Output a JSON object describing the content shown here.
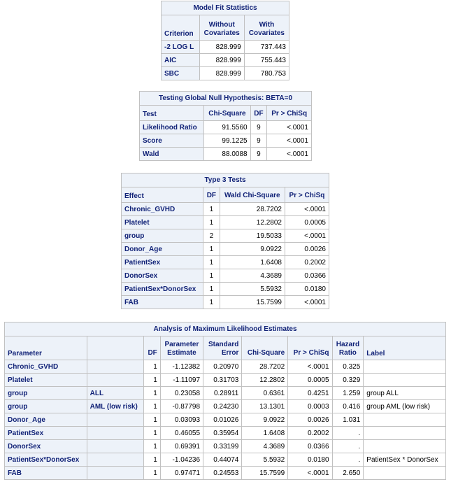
{
  "model_fit": {
    "title": "Model Fit Statistics",
    "headers": [
      "Criterion",
      "Without\nCovariates",
      "With\nCovariates"
    ],
    "rows": [
      [
        "-2 LOG L",
        "828.999",
        "737.443"
      ],
      [
        "AIC",
        "828.999",
        "755.443"
      ],
      [
        "SBC",
        "828.999",
        "780.753"
      ]
    ]
  },
  "global_null": {
    "title": "Testing Global Null Hypothesis: BETA=0",
    "headers": [
      "Test",
      "Chi-Square",
      "DF",
      "Pr > ChiSq"
    ],
    "rows": [
      [
        "Likelihood Ratio",
        "91.5560",
        "9",
        "<.0001"
      ],
      [
        "Score",
        "99.1225",
        "9",
        "<.0001"
      ],
      [
        "Wald",
        "88.0088",
        "9",
        "<.0001"
      ]
    ]
  },
  "type3": {
    "title": "Type 3 Tests",
    "headers": [
      "Effect",
      "DF",
      "Wald Chi-Square",
      "Pr > ChiSq"
    ],
    "rows": [
      [
        "Chronic_GVHD",
        "1",
        "28.7202",
        "<.0001"
      ],
      [
        "Platelet",
        "1",
        "12.2802",
        "0.0005"
      ],
      [
        "group",
        "2",
        "19.5033",
        "<.0001"
      ],
      [
        "Donor_Age",
        "1",
        "9.0922",
        "0.0026"
      ],
      [
        "PatientSex",
        "1",
        "1.6408",
        "0.2002"
      ],
      [
        "DonorSex",
        "1",
        "4.3689",
        "0.0366"
      ],
      [
        "PatientSex*DonorSex",
        "1",
        "5.5932",
        "0.0180"
      ],
      [
        "FAB",
        "1",
        "15.7599",
        "<.0001"
      ]
    ]
  },
  "mle": {
    "title": "Analysis of Maximum Likelihood Estimates",
    "headers": [
      "Parameter",
      "",
      "DF",
      "Parameter\nEstimate",
      "Standard\nError",
      "Chi-Square",
      "Pr > ChiSq",
      "Hazard\nRatio",
      "Label"
    ],
    "rows": [
      [
        "Chronic_GVHD",
        "",
        "1",
        "-1.12382",
        "0.20970",
        "28.7202",
        "<.0001",
        "0.325",
        ""
      ],
      [
        "Platelet",
        "",
        "1",
        "-1.11097",
        "0.31703",
        "12.2802",
        "0.0005",
        "0.329",
        ""
      ],
      [
        "group",
        "ALL",
        "1",
        "0.23058",
        "0.28911",
        "0.6361",
        "0.4251",
        "1.259",
        "group ALL"
      ],
      [
        "group",
        "AML (low risk)",
        "1",
        "-0.87798",
        "0.24230",
        "13.1301",
        "0.0003",
        "0.416",
        "group AML (low risk)"
      ],
      [
        "Donor_Age",
        "",
        "1",
        "0.03093",
        "0.01026",
        "9.0922",
        "0.0026",
        "1.031",
        ""
      ],
      [
        "PatientSex",
        "",
        "1",
        "0.46055",
        "0.35954",
        "1.6408",
        "0.2002",
        ".",
        ""
      ],
      [
        "DonorSex",
        "",
        "1",
        "0.69391",
        "0.33199",
        "4.3689",
        "0.0366",
        ".",
        ""
      ],
      [
        "PatientSex*DonorSex",
        "",
        "1",
        "-1.04236",
        "0.44074",
        "5.5932",
        "0.0180",
        ".",
        "PatientSex * DonorSex"
      ],
      [
        "FAB",
        "",
        "1",
        "0.97471",
        "0.24553",
        "15.7599",
        "<.0001",
        "2.650",
        ""
      ]
    ]
  },
  "colors": {
    "header_bg": "#edf2f9",
    "header_text": "#112277",
    "border": "#c1c1c1"
  }
}
